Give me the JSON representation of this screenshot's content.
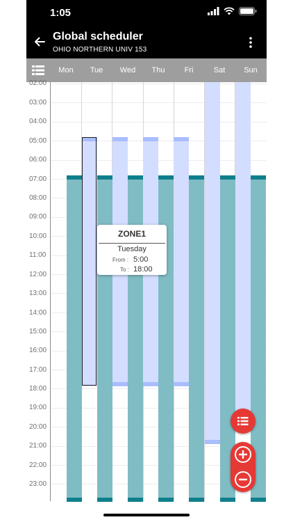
{
  "status_bar": {
    "time": "1:05"
  },
  "app_bar": {
    "title": "Global scheduler",
    "subtitle": "OHIO NORTHERN UNIV 153"
  },
  "days": [
    "Mon",
    "Tue",
    "Wed",
    "Thu",
    "Fri",
    "Sat",
    "Sun"
  ],
  "hours": [
    "02:00",
    "03:00",
    "04:00",
    "05:00",
    "06:00",
    "07:00",
    "08:00",
    "09:00",
    "10:00",
    "11:00",
    "12:00",
    "13:00",
    "14:00",
    "15:00",
    "16:00",
    "17:00",
    "18:00",
    "19:00",
    "20:00",
    "21:00",
    "22:00",
    "23:00"
  ],
  "tooltip": {
    "zone": "ZONE1",
    "day": "Tuesday",
    "from_label": "From :",
    "from_value": "5:00",
    "to_label": "To :",
    "to_value": "18:00"
  },
  "colors": {
    "occupied_fill": "#80bcc4",
    "occupied_cap": "#0f7f8c",
    "zone_fill": "#d3ddff",
    "zone_cap": "#a9bdff",
    "fab_red": "#e53935",
    "day_header": "#9e9e9e"
  },
  "icons": {
    "back": "arrow-left-icon",
    "menu": "more-vertical-icon",
    "list": "list-icon",
    "fab_list": "list-icon",
    "zoom_in": "plus-icon",
    "zoom_out": "minus-icon"
  }
}
